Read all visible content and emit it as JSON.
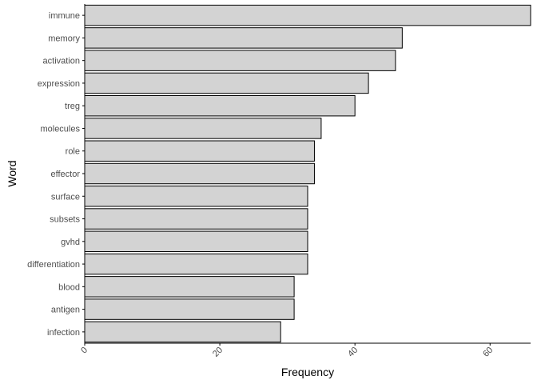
{
  "chart_data": {
    "type": "bar",
    "orientation": "horizontal",
    "xlabel": "Frequency",
    "ylabel": "Word",
    "xlim": [
      0,
      66
    ],
    "xticks": [
      0,
      20,
      40,
      60
    ],
    "grid": false,
    "legend": "none",
    "categories": [
      "immune",
      "memory",
      "activation",
      "expression",
      "treg",
      "molecules",
      "role",
      "effector",
      "surface",
      "subsets",
      "gvhd",
      "differentiation",
      "blood",
      "antigen",
      "infection"
    ],
    "values": [
      66,
      47,
      46,
      42,
      40,
      35,
      34,
      34,
      33,
      33,
      33,
      33,
      31,
      31,
      29
    ],
    "colors": {
      "bar_fill": "#d3d3d3",
      "bar_stroke": "#000000",
      "axis": "#000000",
      "tick_text": "#4d4d4d"
    }
  }
}
